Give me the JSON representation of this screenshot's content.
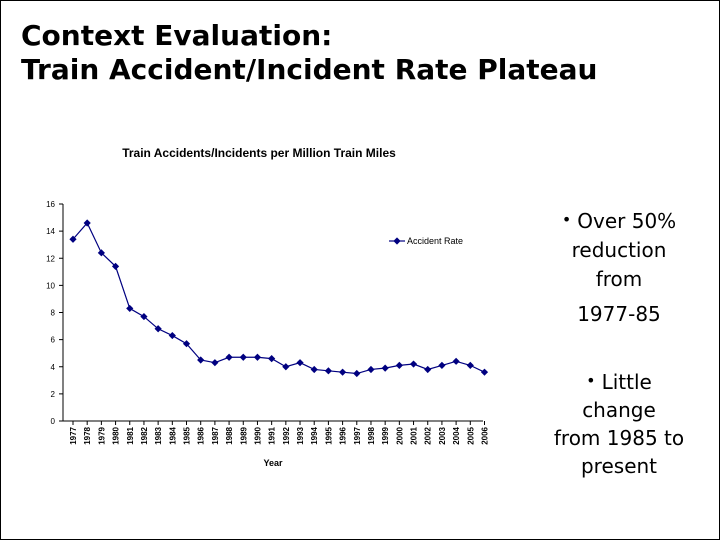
{
  "slide": {
    "title_line1": "Context Evaluation:",
    "title_line2": "Train Accident/Incident Rate Plateau"
  },
  "bullets": [
    {
      "lines": [
        "Over 50%",
        "reduction",
        "from",
        "1977-85"
      ]
    },
    {
      "lines": [
        "Little",
        "change",
        "from 1985 to",
        "present"
      ]
    }
  ],
  "chart_data": {
    "type": "line",
    "title": "Train Accidents/Incidents per Million Train Miles",
    "xlabel": "Year",
    "ylabel": "",
    "ylim": [
      0,
      16
    ],
    "yticks": [
      0,
      2,
      4,
      6,
      8,
      10,
      12,
      14,
      16
    ],
    "grid": false,
    "legend": "top-right",
    "categories": [
      "1977",
      "1978",
      "1979",
      "1980",
      "1981",
      "1982",
      "1983",
      "1984",
      "1985",
      "1986",
      "1987",
      "1988",
      "1989",
      "1990",
      "1991",
      "1992",
      "1993",
      "1994",
      "1995",
      "1996",
      "1997",
      "1998",
      "1999",
      "2000",
      "2001",
      "2002",
      "2003",
      "2004",
      "2005",
      "2006"
    ],
    "series": [
      {
        "name": "Accident Rate",
        "color": "#000080",
        "values": [
          13.4,
          14.6,
          12.4,
          11.4,
          8.3,
          7.7,
          6.8,
          6.3,
          5.7,
          4.5,
          4.3,
          4.7,
          4.7,
          4.7,
          4.6,
          4.0,
          4.3,
          3.8,
          3.7,
          3.6,
          3.5,
          3.8,
          3.9,
          4.1,
          4.2,
          3.8,
          4.1,
          4.4,
          4.1,
          3.6
        ]
      }
    ]
  }
}
